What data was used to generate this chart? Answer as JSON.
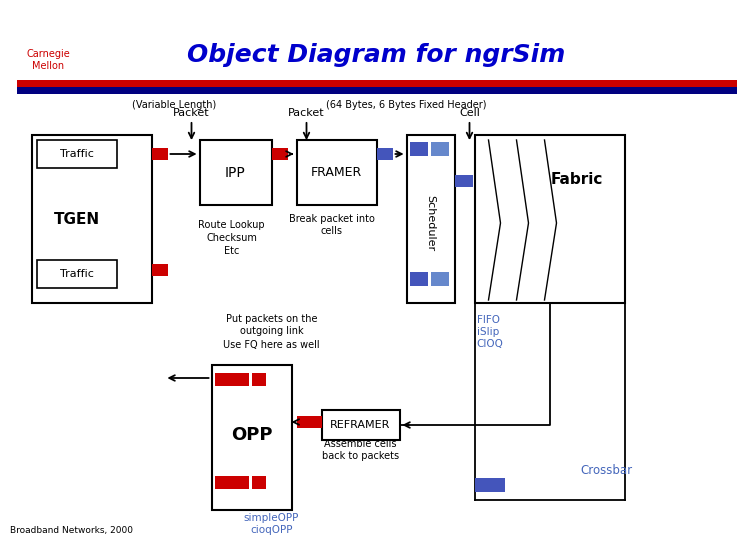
{
  "title": "Object Diagram for ngrSim",
  "title_color": "#0000CC",
  "title_fontsize": 18,
  "bg_color": "#FFFFFF",
  "header_bar_color": "#CC0000",
  "subheader_bar_color": "#000080",
  "label_variable": "(Variable Length)",
  "label_fixed": "(64 Bytes, 6 Bytes Fixed Header)",
  "label_packet1": "Packet",
  "label_packet2": "Packet",
  "label_cell": "Cell",
  "label_traffic": "Traffic",
  "label_tgen": "TGEN",
  "label_ipp": "IPP",
  "label_framer": "FRAMER",
  "label_scheduler": "Scheduler",
  "label_fabric": "Fabric",
  "label_opp": "OPP",
  "label_reframer": "REFRAMER",
  "label_crossbar": "Crossbar",
  "label_fifo": "FIFO",
  "label_islip": "iSlip",
  "label_cioq": "CIOQ",
  "label_route": "Route Lookup",
  "label_checksum": "Checksum",
  "label_etc": "Etc",
  "label_break": "Break packet into\ncells",
  "label_put": "Put packets on the\noutgoing link",
  "label_fq": "Use FQ here as well",
  "label_assemble": "Assemble cells\nback to packets",
  "label_simpleopp": "simpleOPP",
  "label_cioqopp": "cioqOPP",
  "label_broadband": "Broadband Networks, 2000",
  "red_color": "#CC0000",
  "blue_color": "#4455BB",
  "blue_light": "#6688CC",
  "text_blue": "#4466BB",
  "box_color": "#FFFFFF",
  "box_edge": "#000000"
}
